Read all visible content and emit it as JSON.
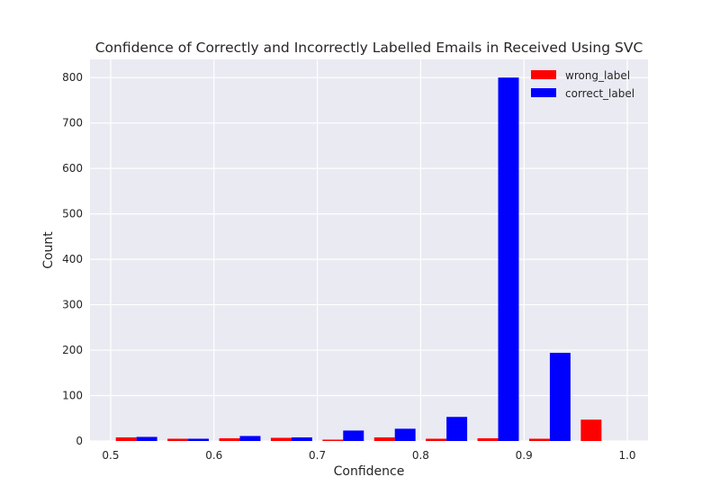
{
  "chart_data": {
    "type": "bar",
    "title": "Confidence of Correctly and Incorrectly Labelled Emails in Received Using SVC",
    "xlabel": "Confidence",
    "ylabel": "Count",
    "xlim": [
      0.48,
      1.02
    ],
    "ylim": [
      0,
      840
    ],
    "bin_edges": [
      0.5,
      0.55,
      0.6,
      0.65,
      0.7,
      0.75,
      0.8,
      0.85,
      0.9,
      0.95,
      1.0
    ],
    "x_ticks": [
      0.5,
      0.6,
      0.7,
      0.8,
      0.9,
      1.0
    ],
    "x_tick_labels": [
      "0.5",
      "0.6",
      "0.7",
      "0.8",
      "0.9",
      "1.0"
    ],
    "y_ticks": [
      0,
      100,
      200,
      300,
      400,
      500,
      600,
      700,
      800
    ],
    "y_tick_labels": [
      "0",
      "100",
      "200",
      "300",
      "400",
      "500",
      "600",
      "700",
      "800"
    ],
    "grid": true,
    "legend_position": "top-right",
    "series": [
      {
        "name": "wrong_label",
        "color": "#ff0000",
        "values": [
          8,
          5,
          6,
          7,
          3,
          8,
          5,
          6,
          5,
          47
        ]
      },
      {
        "name": "correct_label",
        "color": "#0000ff",
        "values": [
          9,
          5,
          11,
          8,
          23,
          27,
          53,
          800,
          194,
          0
        ]
      }
    ],
    "background": "#eaeaf2"
  }
}
